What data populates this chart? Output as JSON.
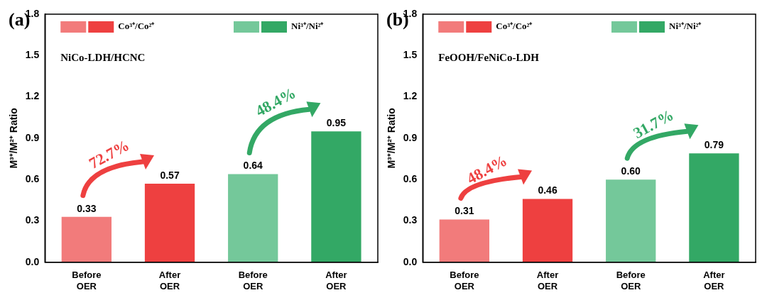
{
  "chart_data": [
    {
      "type": "bar",
      "title": "(a)",
      "subtitle": "NiCo-LDH/HCNC",
      "ylabel": "M³⁺/M²⁺ Ratio",
      "categories": [
        "Before OER",
        "After OER",
        "Before OER",
        "After OER"
      ],
      "series": [
        {
          "name": "Co³⁺/Co²⁺",
          "colors": [
            "#f27b7b",
            "#ee4040",
            null,
            null
          ],
          "values": [
            0.33,
            0.57,
            null,
            null
          ],
          "value_labels": [
            "0.33",
            "0.57",
            null,
            null
          ]
        },
        {
          "name": "Ni³⁺/Ni²⁺",
          "colors": [
            null,
            null,
            "#74c89a",
            "#33a865"
          ],
          "values": [
            null,
            null,
            0.64,
            0.95
          ],
          "value_labels": [
            null,
            null,
            "0.64",
            "0.95"
          ]
        }
      ],
      "annotations": [
        "72.7%",
        "48.4%"
      ],
      "ylim": [
        0,
        1.8
      ],
      "yticks": [
        {
          "value": 0,
          "label": "0.0"
        },
        0.3,
        0.6,
        0.9,
        1.2,
        1.5,
        1.8
      ],
      "legend": "top",
      "grid": false
    },
    {
      "type": "bar",
      "title": "(b)",
      "subtitle": "FeOOH/FeNiCo-LDH",
      "ylabel": "M³⁺/M²⁺ Ratio",
      "categories": [
        "Before OER",
        "After OER",
        "Before OER",
        "After OER"
      ],
      "series": [
        {
          "name": "Co³⁺/Co²⁺",
          "colors": [
            "#f27b7b",
            "#ee4040",
            null,
            null
          ],
          "values": [
            0.31,
            0.46,
            null,
            null
          ],
          "value_labels": [
            "0.31",
            "0.46",
            null,
            null
          ]
        },
        {
          "name": "Ni³⁺/Ni²⁺",
          "colors": [
            null,
            null,
            "#74c89a",
            "#33a865"
          ],
          "values": [
            null,
            null,
            0.6,
            0.79
          ],
          "value_labels": [
            null,
            null,
            "0.60",
            "0.79"
          ]
        }
      ],
      "annotations": [
        "48.4%",
        "31.7%"
      ],
      "ylim": [
        0,
        1.8
      ],
      "yticks": [
        {
          "value": 0,
          "label": "0.0"
        },
        0.3,
        0.6,
        0.9,
        1.2,
        1.5,
        1.8
      ],
      "legend": "top",
      "grid": false
    }
  ]
}
